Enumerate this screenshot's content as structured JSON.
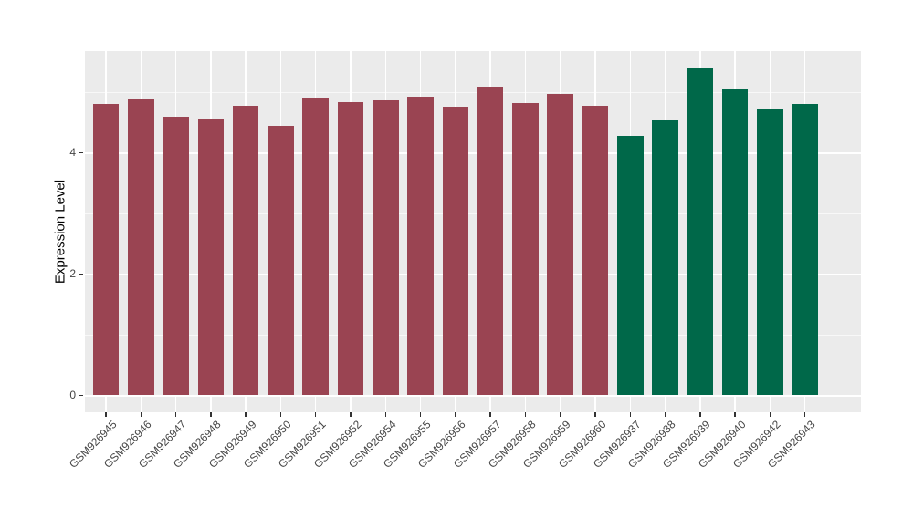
{
  "colors": {
    "maroon_bar": "#9A4452",
    "green_bar": "#006849",
    "panel_background": "#EBEBEB",
    "gridline": "#FFFFFF",
    "tick_text": "#444444",
    "title_text": "#000000",
    "figure_background": "#FFFFFF"
  },
  "chart_data": {
    "type": "bar",
    "title": "",
    "xlabel": "",
    "ylabel": "Expression Level",
    "legend_position": "none",
    "grid": "on",
    "panel_background": "#EBEBEB",
    "ylim": [
      -0.29,
      5.67
    ],
    "y_ticks": [
      0,
      2,
      4
    ],
    "y_minor_ticks": [
      1,
      3,
      5
    ],
    "categories": [
      "GSM926945",
      "GSM926946",
      "GSM926947",
      "GSM926948",
      "GSM926949",
      "GSM926950",
      "GSM926951",
      "GSM926952",
      "GSM926954",
      "GSM926955",
      "GSM926956",
      "GSM926957",
      "GSM926958",
      "GSM926959",
      "GSM926960",
      "GSM926937",
      "GSM926938",
      "GSM926939",
      "GSM926940",
      "GSM926942",
      "GSM926943"
    ],
    "values": [
      4.8,
      4.89,
      4.59,
      4.54,
      4.77,
      4.44,
      4.9,
      4.82,
      4.85,
      4.92,
      4.75,
      5.09,
      4.81,
      4.96,
      4.77,
      4.27,
      4.53,
      5.38,
      5.04,
      4.7,
      4.8
    ],
    "bar_colors": [
      "#9A4452",
      "#9A4452",
      "#9A4452",
      "#9A4452",
      "#9A4452",
      "#9A4452",
      "#9A4452",
      "#9A4452",
      "#9A4452",
      "#9A4452",
      "#9A4452",
      "#9A4452",
      "#9A4452",
      "#9A4452",
      "#9A4452",
      "#006849",
      "#006849",
      "#006849",
      "#006849",
      "#006849",
      "#006849"
    ],
    "groups": [
      {
        "color": "#9A4452",
        "bar_count": 15
      },
      {
        "color": "#006849",
        "bar_count": 6
      }
    ]
  }
}
